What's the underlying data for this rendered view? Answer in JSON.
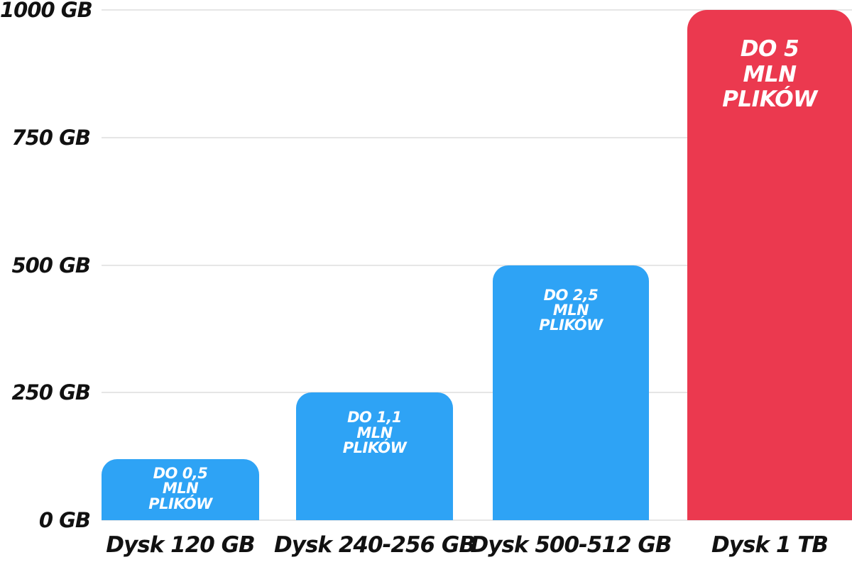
{
  "chart_data": {
    "type": "bar",
    "title": "",
    "xlabel": "",
    "ylabel": "",
    "unit": "GB",
    "categories": [
      "Dysk 120 GB",
      "Dysk 240-256 GB",
      "Dysk 500-512 GB",
      "Dysk 1 TB"
    ],
    "values": [
      120,
      250,
      500,
      1000
    ],
    "bar_labels": [
      [
        "DO 0,5",
        "MLN",
        "PLIKÓW"
      ],
      [
        "DO 1,1",
        "MLN",
        "PLIKÓW"
      ],
      [
        "DO 2,5",
        "MLN",
        "PLIKÓW"
      ],
      [
        "DO 5",
        "MLN",
        "PLIKÓW"
      ]
    ],
    "bar_colors": [
      "#2EA3F5",
      "#2EA3F5",
      "#2EA3F5",
      "#EB394F"
    ],
    "y_ticks": [
      "1000 GB",
      "750 GB",
      "500 GB",
      "250 GB",
      "0 GB"
    ],
    "y_tick_values": [
      1000,
      750,
      500,
      250,
      0
    ],
    "ylim": [
      0,
      1000
    ],
    "grid": true,
    "legend": false
  },
  "colors": {
    "background": "#FFFFFF",
    "bar_blue": "#2EA3F5",
    "bar_red": "#EB394F",
    "gridline": "#E6E6E6",
    "axis_text": "#111111",
    "bar_text": "#FFFFFF"
  }
}
